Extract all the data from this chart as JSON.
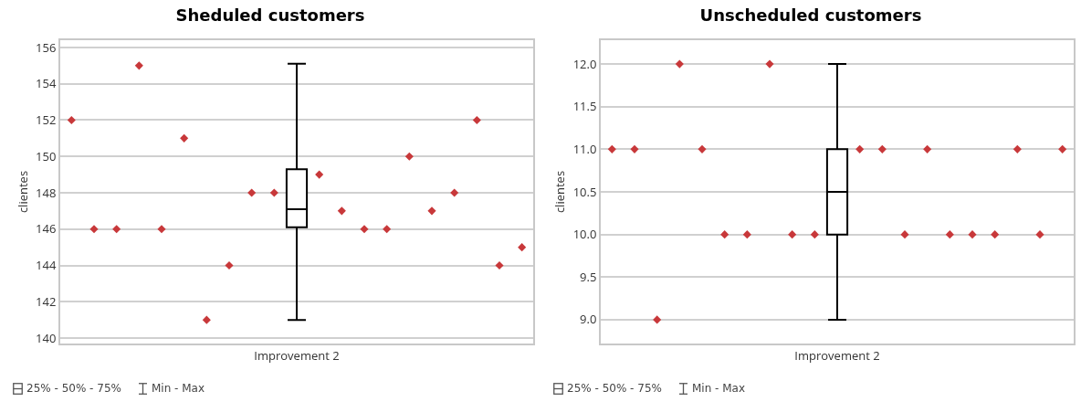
{
  "chart_data": [
    {
      "type": "box",
      "title": "Sheduled customers",
      "ylabel": "clientes",
      "categories": [
        null,
        null,
        null,
        null,
        null,
        null,
        null,
        null,
        null,
        null,
        "Improvement 2",
        null,
        null,
        null,
        null,
        null,
        null,
        null,
        null,
        null,
        null
      ],
      "ylim": [
        139.7,
        156.4
      ],
      "yticks": [
        140,
        142,
        144,
        146,
        148,
        150,
        152,
        154,
        156
      ],
      "grid": "y",
      "boxes": [
        null,
        null,
        null,
        null,
        null,
        null,
        null,
        null,
        null,
        null,
        {
          "low": 141,
          "q1": 146.1,
          "median": 147.1,
          "q3": 149.3,
          "high": 155.1
        },
        null,
        null,
        null,
        null,
        null,
        null,
        null,
        null,
        null,
        null
      ],
      "series": [
        {
          "type": "scatter",
          "color": "#c8383a",
          "marker": "diamond",
          "values": [
            152,
            146,
            146,
            155,
            146,
            151,
            141,
            144,
            148,
            148,
            null,
            149,
            147,
            146,
            146,
            150,
            147,
            148,
            152,
            144,
            145
          ]
        }
      ],
      "annotations": [
        "25% - 50% - 75%",
        "Min - Max"
      ]
    },
    {
      "type": "box",
      "title": "Unscheduled customers",
      "ylabel": "clientes",
      "categories": [
        null,
        null,
        null,
        null,
        null,
        null,
        null,
        null,
        null,
        null,
        "Improvement 2",
        null,
        null,
        null,
        null,
        null,
        null,
        null,
        null,
        null,
        null
      ],
      "ylim": [
        8.72,
        12.28
      ],
      "yticks": [
        {
          "value": 9,
          "label": "9.0"
        },
        {
          "value": 9.5,
          "label": "9.5"
        },
        {
          "value": 10,
          "label": "10.0"
        },
        {
          "value": 10.5,
          "label": "10.5"
        },
        {
          "value": 11,
          "label": "11.0"
        },
        {
          "value": 11.5,
          "label": "11.5"
        },
        {
          "value": 12,
          "label": "12.0"
        }
      ],
      "grid": "y",
      "boxes": [
        null,
        null,
        null,
        null,
        null,
        null,
        null,
        null,
        null,
        null,
        {
          "low": 9,
          "q1": 10,
          "median": 10.5,
          "q3": 11,
          "high": 12
        },
        null,
        null,
        null,
        null,
        null,
        null,
        null,
        null,
        null,
        null
      ],
      "series": [
        {
          "type": "scatter",
          "color": "#c8383a",
          "marker": "diamond",
          "values": [
            11,
            11,
            9,
            12,
            11,
            10,
            10,
            12,
            10,
            10,
            null,
            11,
            11,
            10,
            11,
            10,
            10,
            10,
            11,
            10,
            11
          ]
        }
      ],
      "annotations": [
        "25% - 50% - 75%",
        "Min - Max"
      ]
    }
  ]
}
